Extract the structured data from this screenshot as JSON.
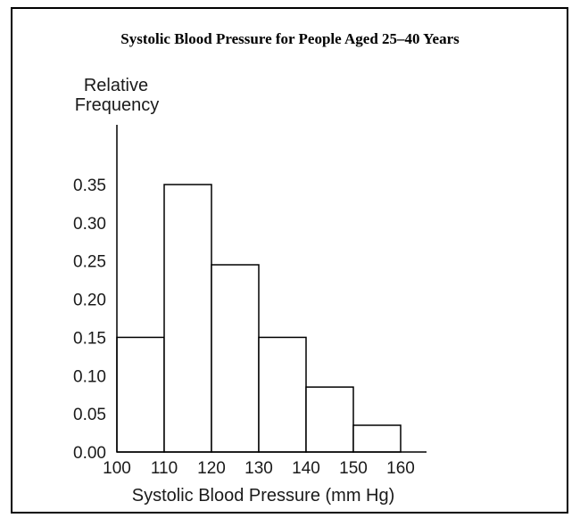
{
  "chart_data": {
    "type": "bar",
    "title": "Systolic Blood Pressure for People Aged 25–40 Years",
    "xlabel": "Systolic Blood Pressure (mm Hg)",
    "ylabel": "Relative Frequency",
    "categories": [
      "100–110",
      "110–120",
      "120–130",
      "130–140",
      "140–150",
      "150–160"
    ],
    "bins": [
      [
        100,
        110
      ],
      [
        110,
        120
      ],
      [
        120,
        130
      ],
      [
        130,
        140
      ],
      [
        140,
        150
      ],
      [
        150,
        160
      ]
    ],
    "values": [
      0.15,
      0.35,
      0.245,
      0.15,
      0.085,
      0.035
    ],
    "xlim": [
      100,
      165
    ],
    "ylim": [
      0,
      0.35
    ],
    "x_ticks": [
      "100",
      "110",
      "120",
      "130",
      "140",
      "150",
      "160"
    ],
    "y_ticks": [
      "0.00",
      "0.05",
      "0.10",
      "0.15",
      "0.20",
      "0.25",
      "0.30",
      "0.35"
    ],
    "grid": false,
    "legend": "none",
    "colors": {
      "bar_fill": "#ffffff",
      "bar_stroke": "#000000"
    }
  }
}
